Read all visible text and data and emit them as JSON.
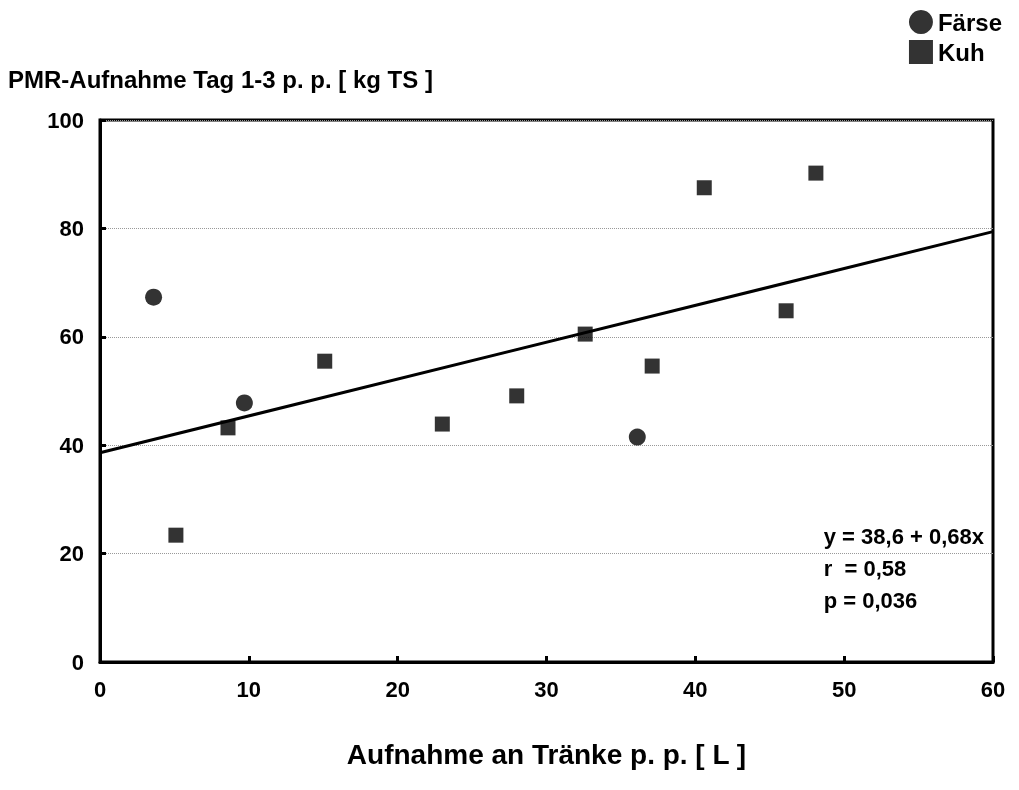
{
  "chart_data": {
    "type": "scatter",
    "ylabel": "PMR-Aufnahme Tag 1-3 p. p. [ kg TS ]",
    "xlabel": "Aufnahme an Tränke p. p. [ L ]",
    "xlim": [
      0,
      60
    ],
    "xticks": [
      0,
      10,
      20,
      30,
      40,
      50,
      60
    ],
    "ylim": [
      0,
      100
    ],
    "yticks": [
      0,
      20,
      40,
      60,
      80,
      100
    ],
    "grid": "y",
    "legend": "top right",
    "series": [
      {
        "name": "Färse",
        "color": "#000000",
        "marker": "circle",
        "x": [
          3.6,
          9.7,
          36.1
        ],
        "values": [
          67.3,
          47.8,
          41.5
        ]
      },
      {
        "name": "Kuh",
        "color": "#000000",
        "marker": "square",
        "x": [
          5.1,
          8.6,
          15.1,
          23.0,
          28.0,
          32.6,
          37.1,
          40.6,
          46.1,
          48.1
        ],
        "values": [
          23.4,
          43.2,
          55.5,
          43.9,
          49.1,
          60.5,
          54.6,
          87.5,
          64.8,
          90.2
        ]
      },
      {
        "type": "line",
        "color": "#000000",
        "marker": "none",
        "line_style": "solid",
        "x": [
          0,
          60
        ],
        "values": [
          38.6,
          79.4
        ]
      }
    ],
    "annotations": [
      "y = 38,6 + 0,68x",
      "r  = 0,58",
      "p = 0,036"
    ]
  }
}
